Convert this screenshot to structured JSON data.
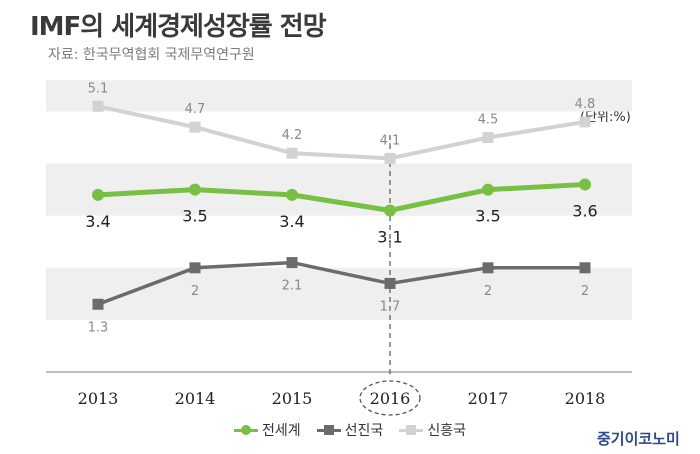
{
  "title": "IMF의 세계경제성장률 전망",
  "source": "자료: 한국무역협회 국제무역연구원",
  "unit_label": "(단위:%)",
  "brand": "중기이코노미",
  "colors": {
    "world": "#77c043",
    "advanced": "#6b6b6b",
    "emerging": "#d2d2d2",
    "band": "#efefef"
  },
  "chart_data": {
    "type": "line",
    "categories": [
      "2013",
      "2014",
      "2015",
      "2016",
      "2017",
      "2018"
    ],
    "highlight_category": "2016",
    "series": [
      {
        "name": "전세계",
        "key": "world",
        "values": [
          3.4,
          3.5,
          3.4,
          3.1,
          3.5,
          3.6
        ],
        "labels": [
          "3.4",
          "3.5",
          "3.4",
          "3.1",
          "3.5",
          "3.6"
        ]
      },
      {
        "name": "선진국",
        "key": "advanced",
        "values": [
          1.3,
          2,
          2.1,
          1.7,
          2,
          2
        ],
        "labels": [
          "1.3",
          "2",
          "2.1",
          "1.7",
          "2",
          "2"
        ]
      },
      {
        "name": "신흥국",
        "key": "emerging",
        "values": [
          5.1,
          4.7,
          4.2,
          4.1,
          4.5,
          4.8
        ],
        "labels": [
          "5.1",
          "4.7",
          "4.2",
          "4.1",
          "4.5",
          "4.8"
        ]
      }
    ],
    "ylim": [
      0,
      5.6
    ],
    "legend_position": "bottom"
  }
}
